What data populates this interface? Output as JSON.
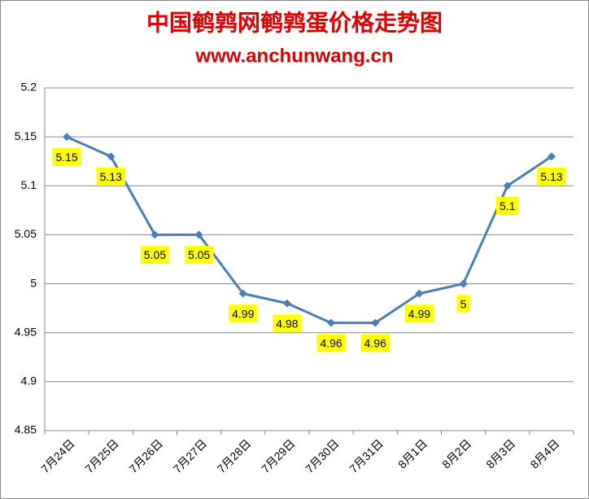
{
  "chart_data": {
    "type": "line",
    "title": "中国鹌鹑网鹌鹑蛋价格走势图",
    "subtitle": "www.anchunwang.cn",
    "categories": [
      "7月24日",
      "7月25日",
      "7月26日",
      "7月27日",
      "7月28日",
      "7月29日",
      "7月30日",
      "7月31日",
      "8月1日",
      "8月2日",
      "8月3日",
      "8月4日"
    ],
    "values": [
      5.15,
      5.13,
      5.05,
      5.05,
      4.99,
      4.98,
      4.96,
      4.96,
      4.99,
      5,
      5.1,
      5.13
    ],
    "color": "#4a7ebb",
    "label_color": "#ffff00",
    "ylim": [
      4.85,
      5.2
    ],
    "yticks": [
      4.85,
      4.9,
      4.95,
      5,
      5.05,
      5.1,
      5.15,
      5.2
    ],
    "grid": true
  }
}
